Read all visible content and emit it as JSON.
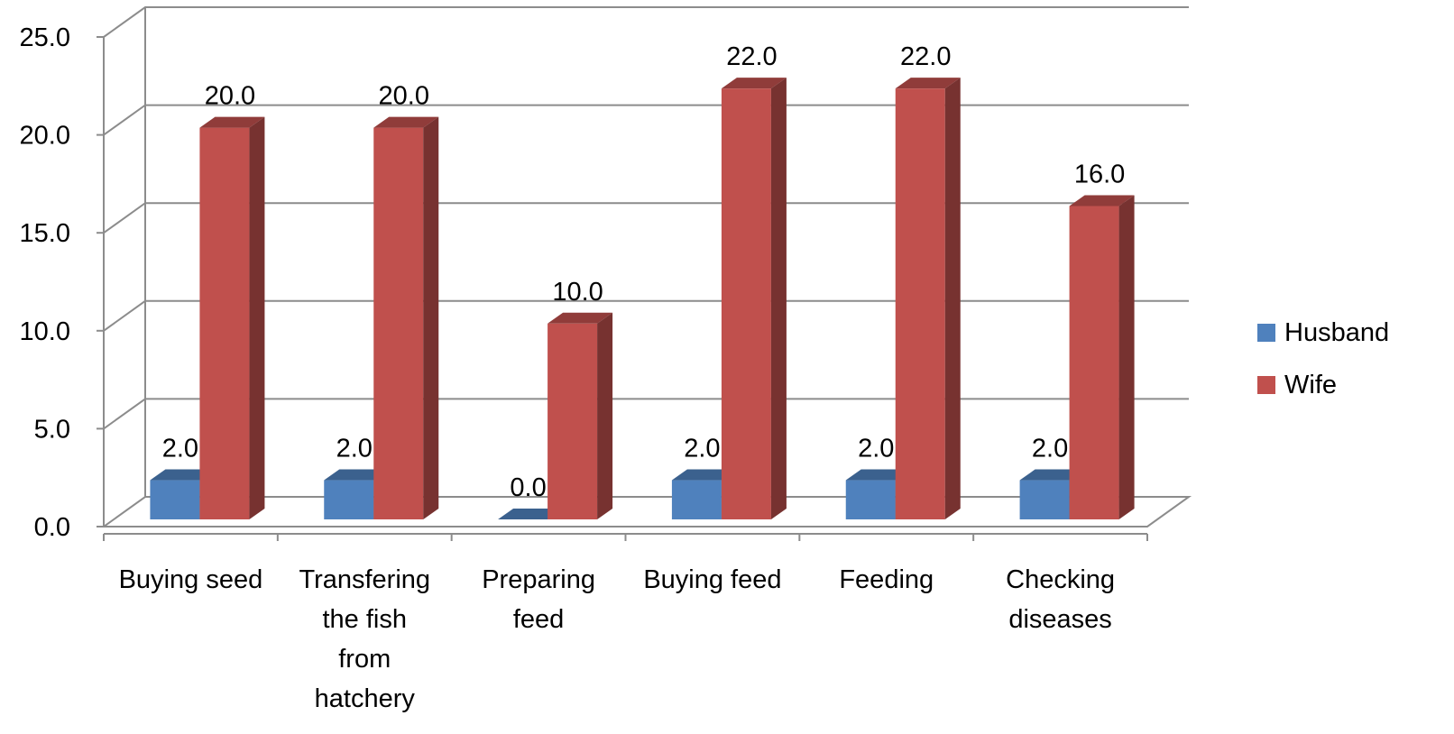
{
  "chart_data": {
    "type": "bar",
    "title": "",
    "xlabel": "",
    "ylabel": "",
    "ylim": [
      0,
      25
    ],
    "yticks": [
      "0.0",
      "5.0",
      "10.0",
      "15.0",
      "20.0",
      "25.0"
    ],
    "categories": [
      [
        "Buying seed"
      ],
      [
        "Transfering",
        "the fish",
        "from",
        "hatchery"
      ],
      [
        "Preparing",
        "feed"
      ],
      [
        "Buying feed"
      ],
      [
        "Feeding"
      ],
      [
        "Checking",
        "diseases"
      ]
    ],
    "series": [
      {
        "name": "Husband",
        "color": "#4F81BD",
        "values": [
          2.0,
          2.0,
          0.0,
          2.0,
          2.0,
          2.0
        ],
        "labels": [
          "2.0",
          "2.0",
          "0.0",
          "2.0",
          "2.0",
          "2.0"
        ]
      },
      {
        "name": "Wife",
        "color": "#C0504D",
        "values": [
          20.0,
          20.0,
          10.0,
          22.0,
          22.0,
          16.0
        ],
        "labels": [
          "20.0",
          "20.0",
          "10.0",
          "22.0",
          "22.0",
          "16.0"
        ]
      }
    ],
    "grid": true,
    "legend": "right",
    "style": "3d-column"
  }
}
